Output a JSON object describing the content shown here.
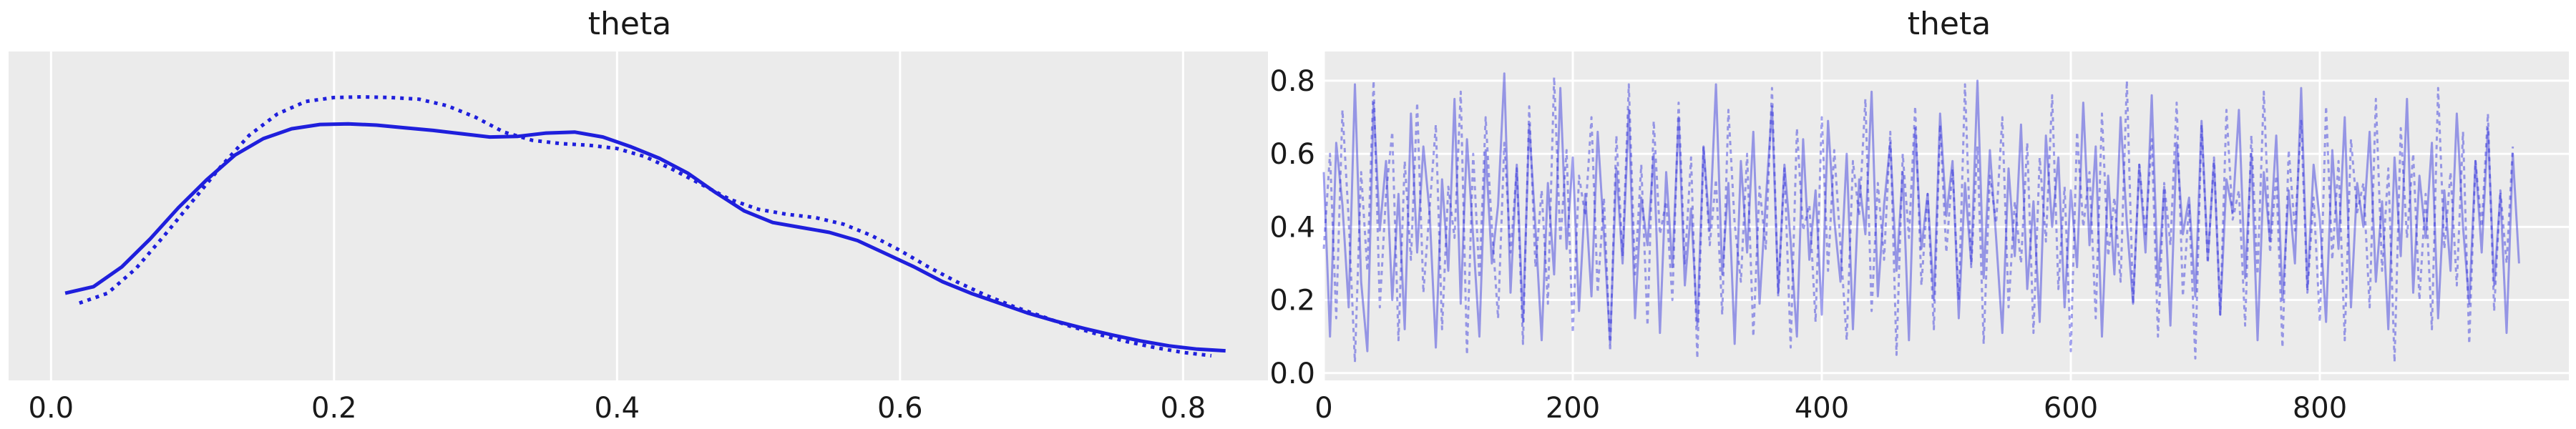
{
  "colors": {
    "line": "#1f1fdc",
    "trace": "#8c8cf0",
    "panel": "#ebebeb"
  },
  "chart_data": [
    {
      "type": "line",
      "title": "theta",
      "xlabel": "",
      "ylabel": "",
      "xlim": [
        -0.03,
        0.86
      ],
      "ylim": [
        0,
        1
      ],
      "grid": true,
      "y_ticks_visible": false,
      "x_ticks": [
        0.0,
        0.2,
        0.4,
        0.6,
        0.8
      ],
      "x_tick_labels": [
        "0.0",
        "0.2",
        "0.4",
        "0.6",
        "0.8"
      ],
      "series": [
        {
          "style": "solid",
          "x": [
            0.01,
            0.03,
            0.05,
            0.07,
            0.09,
            0.11,
            0.13,
            0.15,
            0.17,
            0.19,
            0.21,
            0.23,
            0.25,
            0.27,
            0.29,
            0.31,
            0.33,
            0.35,
            0.37,
            0.39,
            0.41,
            0.43,
            0.45,
            0.47,
            0.49,
            0.51,
            0.53,
            0.55,
            0.57,
            0.59,
            0.61,
            0.63,
            0.65,
            0.67,
            0.69,
            0.71,
            0.73,
            0.75,
            0.77,
            0.79,
            0.81,
            0.83
          ],
          "y": [
            0.265,
            0.285,
            0.345,
            0.43,
            0.525,
            0.61,
            0.685,
            0.735,
            0.765,
            0.778,
            0.78,
            0.776,
            0.768,
            0.76,
            0.75,
            0.74,
            0.742,
            0.752,
            0.755,
            0.74,
            0.71,
            0.675,
            0.63,
            0.57,
            0.515,
            0.48,
            0.465,
            0.45,
            0.425,
            0.385,
            0.345,
            0.3,
            0.265,
            0.235,
            0.205,
            0.18,
            0.158,
            0.138,
            0.12,
            0.105,
            0.095,
            0.09
          ]
        },
        {
          "style": "dotted",
          "x": [
            0.02,
            0.04,
            0.06,
            0.08,
            0.1,
            0.12,
            0.14,
            0.16,
            0.18,
            0.2,
            0.22,
            0.24,
            0.26,
            0.28,
            0.3,
            0.32,
            0.34,
            0.36,
            0.38,
            0.4,
            0.42,
            0.44,
            0.46,
            0.48,
            0.5,
            0.52,
            0.54,
            0.56,
            0.58,
            0.6,
            0.62,
            0.64,
            0.66,
            0.68,
            0.7,
            0.72,
            0.74,
            0.76,
            0.78,
            0.8,
            0.82
          ],
          "y": [
            0.235,
            0.265,
            0.34,
            0.44,
            0.545,
            0.65,
            0.745,
            0.81,
            0.848,
            0.86,
            0.862,
            0.86,
            0.855,
            0.835,
            0.8,
            0.755,
            0.73,
            0.72,
            0.715,
            0.705,
            0.68,
            0.64,
            0.595,
            0.55,
            0.52,
            0.505,
            0.495,
            0.475,
            0.44,
            0.395,
            0.345,
            0.3,
            0.26,
            0.225,
            0.195,
            0.165,
            0.14,
            0.118,
            0.1,
            0.085,
            0.075
          ]
        }
      ]
    },
    {
      "type": "line",
      "title": "theta",
      "xlabel": "",
      "ylabel": "",
      "xlim": [
        0,
        1000
      ],
      "ylim": [
        -0.02,
        0.88
      ],
      "grid": true,
      "x_ticks": [
        0,
        200,
        400,
        600,
        800
      ],
      "x_tick_labels": [
        "0",
        "200",
        "400",
        "600",
        "800"
      ],
      "y_ticks": [
        0.0,
        0.2,
        0.4,
        0.6,
        0.8
      ],
      "y_tick_labels": [
        "0.0",
        "0.2",
        "0.4",
        "0.6",
        "0.8"
      ],
      "series": [
        {
          "style": "solid",
          "x_start": 0,
          "x_step": 5,
          "y": [
            0.55,
            0.1,
            0.63,
            0.46,
            0.18,
            0.79,
            0.25,
            0.06,
            0.74,
            0.39,
            0.58,
            0.2,
            0.49,
            0.12,
            0.71,
            0.33,
            0.62,
            0.44,
            0.07,
            0.53,
            0.28,
            0.75,
            0.19,
            0.64,
            0.37,
            0.1,
            0.61,
            0.3,
            0.46,
            0.82,
            0.22,
            0.57,
            0.14,
            0.68,
            0.4,
            0.09,
            0.52,
            0.27,
            0.78,
            0.34,
            0.59,
            0.17,
            0.49,
            0.21,
            0.66,
            0.38,
            0.08,
            0.56,
            0.3,
            0.72,
            0.15,
            0.48,
            0.35,
            0.6,
            0.11,
            0.55,
            0.29,
            0.7,
            0.24,
            0.45,
            0.13,
            0.62,
            0.39,
            0.79,
            0.27,
            0.52,
            0.08,
            0.58,
            0.33,
            0.66,
            0.19,
            0.47,
            0.73,
            0.22,
            0.57,
            0.36,
            0.1,
            0.64,
            0.31,
            0.5,
            0.16,
            0.69,
            0.42,
            0.25,
            0.6,
            0.12,
            0.53,
            0.38,
            0.77,
            0.21,
            0.46,
            0.63,
            0.28,
            0.55,
            0.09,
            0.67,
            0.34,
            0.49,
            0.2,
            0.71,
            0.43,
            0.58,
            0.15,
            0.52,
            0.3,
            0.8,
            0.26,
            0.61,
            0.37,
            0.11,
            0.56,
            0.32,
            0.68,
            0.23,
            0.47,
            0.14,
            0.65,
            0.4,
            0.59,
            0.18,
            0.5,
            0.29,
            0.74,
            0.35,
            0.62,
            0.1,
            0.54,
            0.27,
            0.7,
            0.41,
            0.19,
            0.57,
            0.33,
            0.76,
            0.24,
            0.51,
            0.13,
            0.63,
            0.38,
            0.48,
            0.21,
            0.69,
            0.31,
            0.58,
            0.16,
            0.53,
            0.44,
            0.72,
            0.26,
            0.6,
            0.09,
            0.55,
            0.36,
            0.65,
            0.2,
            0.5,
            0.3,
            0.78,
            0.23,
            0.57,
            0.42,
            0.14,
            0.61,
            0.34,
            0.7,
            0.18,
            0.52,
            0.4,
            0.66,
            0.25,
            0.47,
            0.12,
            0.59,
            0.32,
            0.75,
            0.22,
            0.54,
            0.37,
            0.63,
            0.15,
            0.5,
            0.28,
            0.71,
            0.4,
            0.19,
            0.58,
            0.33,
            0.67,
            0.24,
            0.49,
            0.11,
            0.6,
            0.3
          ]
        },
        {
          "style": "dotted",
          "x_start": 0,
          "x_step": 5,
          "y": [
            0.34,
            0.6,
            0.15,
            0.72,
            0.42,
            0.03,
            0.55,
            0.28,
            0.8,
            0.18,
            0.49,
            0.66,
            0.09,
            0.58,
            0.31,
            0.74,
            0.22,
            0.45,
            0.68,
            0.12,
            0.51,
            0.37,
            0.77,
            0.05,
            0.6,
            0.26,
            0.7,
            0.4,
            0.15,
            0.63,
            0.33,
            0.56,
            0.08,
            0.73,
            0.29,
            0.5,
            0.19,
            0.81,
            0.36,
            0.61,
            0.11,
            0.54,
            0.43,
            0.7,
            0.22,
            0.48,
            0.06,
            0.65,
            0.32,
            0.79,
            0.27,
            0.57,
            0.13,
            0.69,
            0.38,
            0.47,
            0.2,
            0.74,
            0.3,
            0.59,
            0.04,
            0.62,
            0.35,
            0.53,
            0.16,
            0.72,
            0.41,
            0.25,
            0.6,
            0.1,
            0.51,
            0.34,
            0.78,
            0.21,
            0.56,
            0.07,
            0.67,
            0.39,
            0.46,
            0.14,
            0.7,
            0.28,
            0.61,
            0.35,
            0.09,
            0.58,
            0.43,
            0.75,
            0.17,
            0.52,
            0.31,
            0.66,
            0.05,
            0.6,
            0.37,
            0.73,
            0.24,
            0.49,
            0.12,
            0.68,
            0.33,
            0.56,
            0.2,
            0.79,
            0.29,
            0.62,
            0.08,
            0.54,
            0.41,
            0.7,
            0.18,
            0.47,
            0.3,
            0.63,
            0.11,
            0.59,
            0.36,
            0.76,
            0.23,
            0.51,
            0.06,
            0.66,
            0.4,
            0.55,
            0.15,
            0.71,
            0.32,
            0.48,
            0.25,
            0.8,
            0.19,
            0.57,
            0.38,
            0.64,
            0.1,
            0.52,
            0.35,
            0.74,
            0.21,
            0.46,
            0.04,
            0.68,
            0.3,
            0.59,
            0.16,
            0.72,
            0.42,
            0.5,
            0.13,
            0.65,
            0.27,
            0.77,
            0.33,
            0.54,
            0.07,
            0.61,
            0.39,
            0.69,
            0.22,
            0.48,
            0.14,
            0.73,
            0.31,
            0.58,
            0.09,
            0.64,
            0.44,
            0.52,
            0.18,
            0.75,
            0.28,
            0.56,
            0.03,
            0.67,
            0.37,
            0.6,
            0.2,
            0.49,
            0.12,
            0.78,
            0.34,
            0.55,
            0.24,
            0.66,
            0.08,
            0.58,
            0.4,
            0.71,
            0.17,
            0.5,
            0.3,
            0.62
          ]
        }
      ]
    }
  ]
}
